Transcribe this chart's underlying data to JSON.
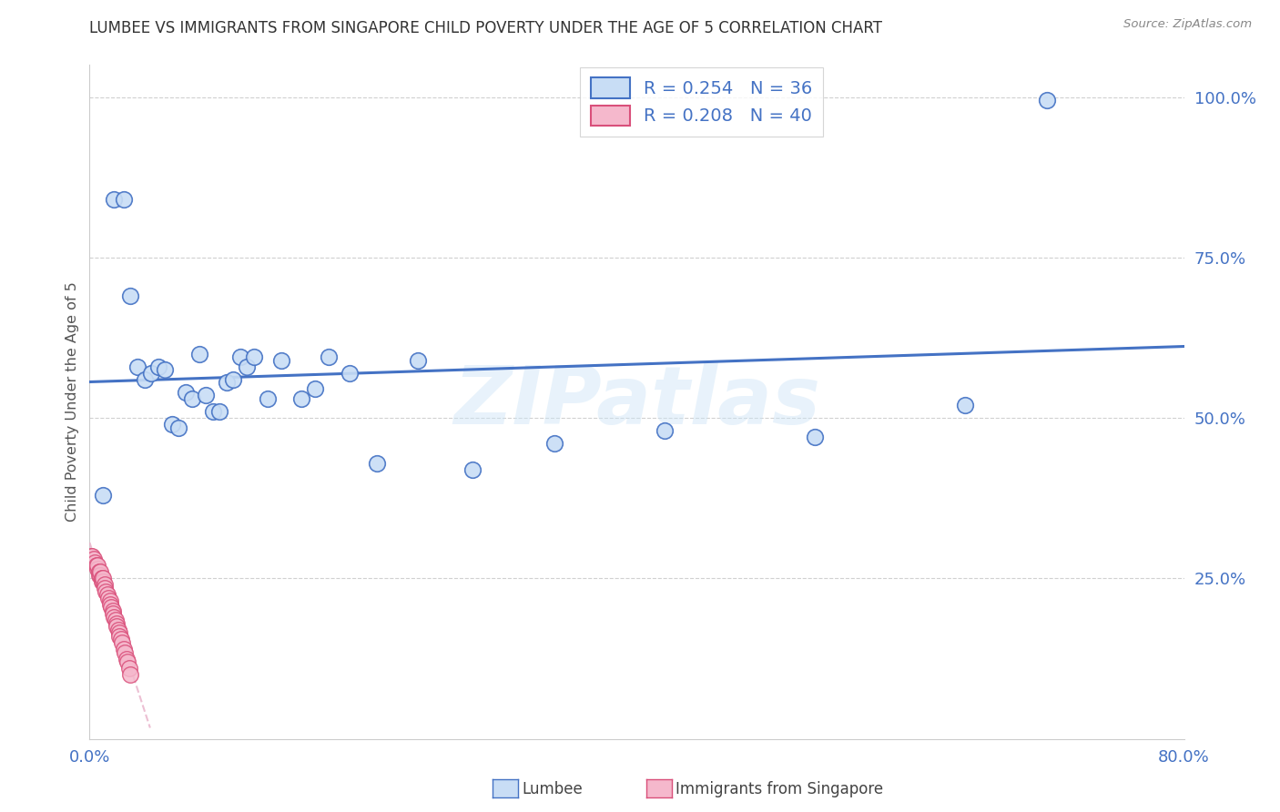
{
  "title": "LUMBEE VS IMMIGRANTS FROM SINGAPORE CHILD POVERTY UNDER THE AGE OF 5 CORRELATION CHART",
  "source": "Source: ZipAtlas.com",
  "ylabel_label": "Child Poverty Under the Age of 5",
  "legend_label1": "Lumbee",
  "legend_label2": "Immigrants from Singapore",
  "R1": 0.254,
  "N1": 36,
  "R2": 0.208,
  "N2": 40,
  "lumbee_x": [
    0.01,
    0.018,
    0.025,
    0.03,
    0.035,
    0.04,
    0.045,
    0.05,
    0.055,
    0.06,
    0.065,
    0.07,
    0.075,
    0.08,
    0.085,
    0.09,
    0.095,
    0.1,
    0.105,
    0.11,
    0.115,
    0.12,
    0.13,
    0.14,
    0.155,
    0.165,
    0.175,
    0.19,
    0.21,
    0.24,
    0.28,
    0.34,
    0.42,
    0.53,
    0.64,
    0.7
  ],
  "lumbee_y": [
    0.38,
    0.84,
    0.84,
    0.69,
    0.58,
    0.56,
    0.57,
    0.58,
    0.575,
    0.49,
    0.485,
    0.54,
    0.53,
    0.6,
    0.535,
    0.51,
    0.51,
    0.555,
    0.56,
    0.595,
    0.58,
    0.595,
    0.53,
    0.59,
    0.53,
    0.545,
    0.595,
    0.57,
    0.43,
    0.59,
    0.42,
    0.46,
    0.48,
    0.47,
    0.52,
    0.995
  ],
  "singapore_x": [
    0.001,
    0.002,
    0.003,
    0.004,
    0.005,
    0.006,
    0.006,
    0.007,
    0.007,
    0.008,
    0.008,
    0.009,
    0.009,
    0.01,
    0.01,
    0.011,
    0.011,
    0.012,
    0.013,
    0.014,
    0.015,
    0.015,
    0.016,
    0.017,
    0.017,
    0.018,
    0.019,
    0.02,
    0.02,
    0.021,
    0.022,
    0.022,
    0.023,
    0.024,
    0.025,
    0.026,
    0.027,
    0.028,
    0.029,
    0.03
  ],
  "singapore_y": [
    0.285,
    0.285,
    0.28,
    0.275,
    0.27,
    0.265,
    0.27,
    0.26,
    0.255,
    0.255,
    0.26,
    0.25,
    0.245,
    0.245,
    0.25,
    0.24,
    0.235,
    0.23,
    0.225,
    0.22,
    0.215,
    0.21,
    0.205,
    0.2,
    0.195,
    0.19,
    0.185,
    0.18,
    0.175,
    0.17,
    0.165,
    0.16,
    0.155,
    0.15,
    0.14,
    0.135,
    0.125,
    0.12,
    0.11,
    0.1
  ],
  "color_lumbee_face": "#c8ddf5",
  "color_lumbee_edge": "#4472c4",
  "color_singapore_face": "#f5b8cc",
  "color_singapore_edge": "#d94f7a",
  "color_reg_lumbee": "#4472c4",
  "color_reg_singapore": "#e8b0c8",
  "grid_color": "#d0d0d0",
  "text_color": "#4472c4",
  "title_color": "#333333",
  "bg_color": "#ffffff",
  "xlim": [
    0.0,
    0.8
  ],
  "ylim": [
    0.0,
    1.05
  ],
  "ytick_positions": [
    0.0,
    0.25,
    0.5,
    0.75,
    1.0
  ],
  "ytick_labels": [
    "",
    "25.0%",
    "50.0%",
    "75.0%",
    "100.0%"
  ],
  "xtick_positions": [
    0.0,
    0.8
  ],
  "xtick_labels": [
    "0.0%",
    "80.0%"
  ]
}
